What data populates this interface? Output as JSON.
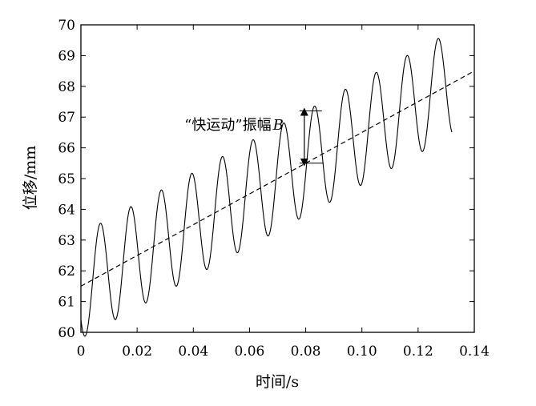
{
  "chart_data": {
    "type": "line",
    "xlabel": "时间/s",
    "ylabel": "位移/mm",
    "xlim": [
      0,
      0.14
    ],
    "ylim": [
      60,
      70
    ],
    "xticks": [
      "0",
      "0.02",
      "0.04",
      "0.06",
      "0.08",
      "0.10",
      "0.12",
      "0.14"
    ],
    "yticks": [
      "60",
      "61",
      "62",
      "63",
      "64",
      "65",
      "66",
      "67",
      "68",
      "69",
      "70"
    ],
    "grid": false,
    "series": [
      {
        "style": "solid",
        "x_range": [
          0,
          0.132
        ],
        "trend_start": 61.5,
        "trend_slope": 50,
        "amplitude": 1.7,
        "period": 0.0108,
        "peak_points": [
          [
            0.0072,
            63.35
          ],
          [
            0.018,
            63.9
          ],
          [
            0.029,
            64.4
          ],
          [
            0.0398,
            64.95
          ],
          [
            0.0506,
            65.5
          ],
          [
            0.0614,
            66.05
          ],
          [
            0.073,
            66.6
          ],
          [
            0.084,
            67.2
          ],
          [
            0.095,
            67.8
          ],
          [
            0.1065,
            68.4
          ],
          [
            0.1175,
            69.0
          ],
          [
            0.1285,
            69.6
          ]
        ],
        "trough_points": [
          [
            0.0015,
            59.95
          ],
          [
            0.0125,
            60.55
          ],
          [
            0.0235,
            61.1
          ],
          [
            0.0345,
            61.65
          ],
          [
            0.0455,
            62.2
          ],
          [
            0.0565,
            62.75
          ],
          [
            0.0675,
            63.3
          ],
          [
            0.0785,
            63.9
          ],
          [
            0.0895,
            64.45
          ],
          [
            0.101,
            65.05
          ],
          [
            0.112,
            65.65
          ],
          [
            0.123,
            66.25
          ]
        ]
      },
      {
        "style": "dashed",
        "x": [
          0,
          0.14
        ],
        "y": [
          61.5,
          68.5
        ]
      }
    ],
    "annotations": [
      {
        "text": "“快运动”振幅",
        "symbol": "B",
        "arrow_x": 0.0795,
        "arrow_y": [
          65.5,
          67.2
        ]
      }
    ]
  }
}
